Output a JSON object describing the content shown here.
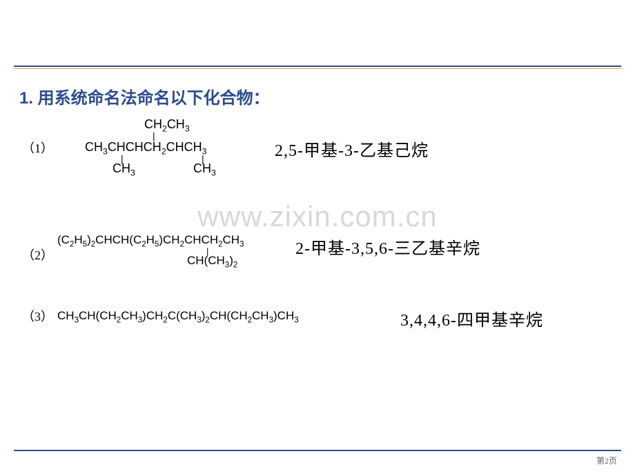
{
  "colors": {
    "heading": "#2a4d8f",
    "rule_primary": "#2a4d8f",
    "rule_accent": "#e6a23c",
    "text": "#000000",
    "watermark": "#d8d8d8",
    "background": "#ffffff",
    "pagenum": "#666666"
  },
  "typography": {
    "heading_fontsize": 24,
    "body_fontsize": 18,
    "answer_fontsize": 24,
    "watermark_fontsize": 42,
    "pagenum_fontsize": 12
  },
  "heading": "1. 用系统命名法命名以下化合物：",
  "watermark": "www.zixin.com.cn",
  "items": [
    {
      "label": "（1）",
      "structure": {
        "top": "CH₂CH₃",
        "main": "CH₃CHCHCH₂CHCH₃",
        "bottom_left": "CH₃",
        "bottom_right": "CH₃"
      },
      "answer": "2,5-甲基-3-乙基己烷"
    },
    {
      "label": "（2）",
      "structure": {
        "main": "(C₂H₅)₂CHCH(C₂H₅)CH₂CHCH₂CH₃",
        "bottom": "CH(CH₃)₂"
      },
      "answer": "2-甲基-3,5,6-三乙基辛烷"
    },
    {
      "label": "（3）",
      "structure": {
        "main": "CH₃CH(CH₂CH₃)CH₂C(CH₃)₂CH(CH₂CH₃)CH₃"
      },
      "answer": "3,4,4,6-四甲基辛烷"
    }
  ],
  "pagenum": "第2页"
}
